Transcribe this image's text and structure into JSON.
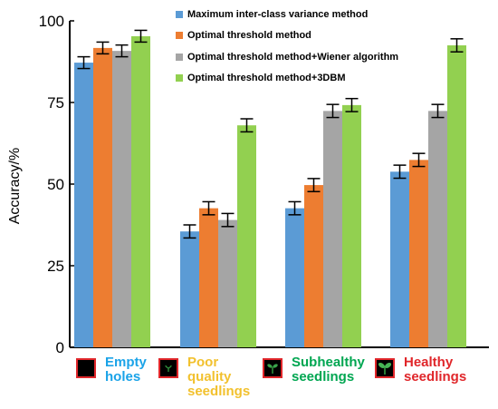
{
  "chart_data": {
    "type": "bar",
    "ylabel": "Accuracy/%",
    "xlabel": "",
    "ylim": [
      0,
      100
    ],
    "yticks": [
      "0",
      "25",
      "50",
      "75",
      "100"
    ],
    "grid": false,
    "legend_position": "top-right",
    "categories": [
      "Empty holes",
      "Poor quality seedlings",
      "Subhealthy seedlings",
      "Healthy seedlings"
    ],
    "series": [
      {
        "name": "Maximum inter-class variance method",
        "color": "#5b9bd5",
        "values": [
          87.2,
          35.5,
          42.6,
          53.8
        ],
        "errors": [
          1.8,
          2.0,
          2.0,
          2.0
        ]
      },
      {
        "name": "Optimal threshold method",
        "color": "#ed7d31",
        "values": [
          91.7,
          42.6,
          49.7,
          57.4
        ],
        "errors": [
          1.8,
          2.0,
          2.0,
          2.0
        ]
      },
      {
        "name": "Optimal threshold method+Wiener algorithm",
        "color": "#a5a5a5",
        "values": [
          90.8,
          39.0,
          72.4,
          72.4
        ],
        "errors": [
          1.8,
          2.0,
          2.0,
          2.0
        ]
      },
      {
        "name": "Optimal threshold method+3DBM",
        "color": "#92d050",
        "values": [
          95.3,
          68.0,
          74.2,
          92.5
        ],
        "errors": [
          1.8,
          2.0,
          2.0,
          2.0
        ]
      }
    ],
    "category_colors": [
      "#1aa3e8",
      "#f2c12e",
      "#00a651",
      "#e0262a"
    ]
  },
  "category_labels": [
    {
      "lines": [
        "Empty",
        "holes"
      ],
      "icon": "empty-hole-icon"
    },
    {
      "lines": [
        "Poor",
        "quality",
        "seedlings"
      ],
      "icon": "small-sprout-icon"
    },
    {
      "lines": [
        "Subhealthy",
        "seedlings"
      ],
      "icon": "medium-sprout-icon"
    },
    {
      "lines": [
        "Healthy",
        "seedlings"
      ],
      "icon": "large-sprout-icon"
    }
  ]
}
